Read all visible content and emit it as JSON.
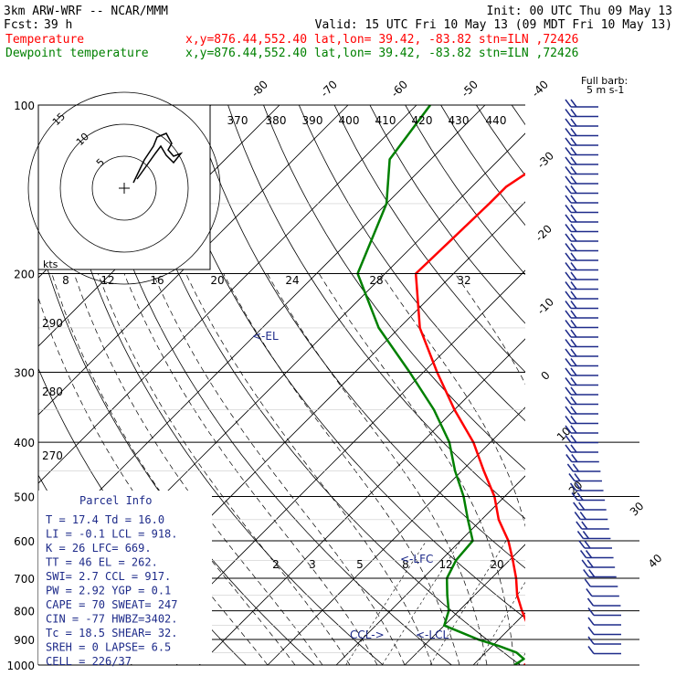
{
  "header": {
    "model": "3km ARW-WRF -- NCAR/MMM",
    "init": "Init: 00 UTC Thu 09 May 13",
    "fcst_label": "Fcst:",
    "fcst_value": "39 h",
    "valid": "Valid: 15 UTC Fri 10 May 13 (09 MDT Fri 10 May 13)",
    "temp_label": "Temperature",
    "temp_loc": "x,y=876.44,552.40   lat,lon= 39.42, -83.82  stn=ILN ,72426",
    "dew_label": "Dewpoint temperature",
    "dew_loc": "x,y=876.44,552.40   lat,lon= 39.42, -83.82  stn=ILN ,72426",
    "barb_note_1": "Full barb:",
    "barb_note_2": "5 m s-1"
  },
  "colors": {
    "temperature": "#ff0000",
    "dewpoint": "#008000",
    "info": "#1e2b8a"
  },
  "chart_data": {
    "type": "line",
    "title": "",
    "ylabel": "",
    "pressure_levels": [
      "100",
      "200",
      "300",
      "400",
      "500",
      "600",
      "700",
      "800",
      "900",
      "1000"
    ],
    "temperature_axis_labels": [
      "-80",
      "-70",
      "-60",
      "-50",
      "-40",
      "-30",
      "-20",
      "-10",
      "0",
      "10",
      "20",
      "30",
      "40"
    ],
    "theta_labels": [
      "370",
      "380",
      "390",
      "400",
      "410",
      "420",
      "430",
      "440"
    ],
    "theta_side_labels": [
      "290",
      "280",
      "270"
    ],
    "mixing_ratio_labels": [
      "2",
      "3",
      "5",
      "8",
      "12",
      "20"
    ],
    "hodograph": {
      "unit": "kts",
      "scale_labels": [
        "8",
        "12",
        "16",
        "20",
        "24",
        "28",
        "32"
      ],
      "ring_labels": [
        "15",
        "10",
        "5"
      ]
    },
    "markers": {
      "el": "<-EL",
      "lfc": "<-LFC",
      "lcl": "<-LCL",
      "ccl": "CCL->"
    },
    "series": [
      {
        "name": "Temperature",
        "color": "#ff0000",
        "points": [
          [
            1000,
            17.4
          ],
          [
            975,
            18.6
          ],
          [
            950,
            17
          ],
          [
            925,
            16
          ],
          [
            900,
            14.6
          ],
          [
            850,
            12.2
          ],
          [
            800,
            9.2
          ],
          [
            750,
            6.2
          ],
          [
            700,
            3.6
          ],
          [
            650,
            0.5
          ],
          [
            600,
            -3
          ],
          [
            550,
            -7.5
          ],
          [
            500,
            -11.5
          ],
          [
            450,
            -16.8
          ],
          [
            400,
            -22.5
          ],
          [
            350,
            -30
          ],
          [
            300,
            -38
          ],
          [
            250,
            -47
          ],
          [
            200,
            -55.5
          ],
          [
            150,
            -55
          ],
          [
            140,
            -55
          ],
          [
            125,
            -53
          ],
          [
            115,
            -52.5
          ],
          [
            100,
            -54
          ]
        ]
      },
      {
        "name": "Dewpoint temperature",
        "color": "#008000",
        "points": [
          [
            1000,
            16
          ],
          [
            975,
            16.5
          ],
          [
            950,
            14.5
          ],
          [
            925,
            11
          ],
          [
            900,
            7
          ],
          [
            850,
            0
          ],
          [
            800,
            -1.5
          ],
          [
            750,
            -4
          ],
          [
            700,
            -6.5
          ],
          [
            650,
            -7.8
          ],
          [
            600,
            -8.2
          ],
          [
            550,
            -12
          ],
          [
            500,
            -16
          ],
          [
            450,
            -21
          ],
          [
            400,
            -26
          ],
          [
            350,
            -33
          ],
          [
            300,
            -42
          ],
          [
            250,
            -53
          ],
          [
            200,
            -64
          ],
          [
            150,
            -70
          ],
          [
            125,
            -76
          ],
          [
            100,
            -78
          ]
        ]
      }
    ]
  },
  "parcel": {
    "title": "Parcel Info",
    "rows": [
      "T  =    17.4 Td =  16.0",
      "LI =    -0.1 LCL =  918.",
      "K  =     26 LFC=  669.",
      "TT =     46 EL  =  262.",
      "SWI=    2.7 CCL =  917.",
      "PW =   2.92 YGP =   0.1",
      "CAPE =   70 SWEAT=  247",
      "CIN  =  -77 HWBZ=3402.",
      "Tc =   18.5 SHEAR=  32.",
      "SREH =    0 LAPSE=  6.5",
      "CELL = 226/37"
    ]
  }
}
